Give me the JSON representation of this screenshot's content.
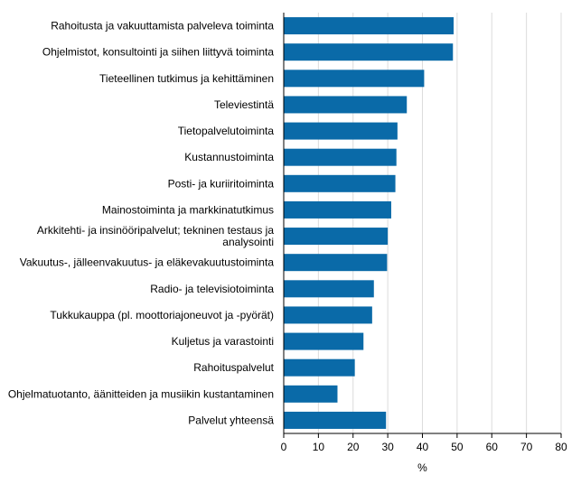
{
  "chart_data": {
    "type": "bar",
    "orientation": "horizontal",
    "categories": [
      [
        "Rahoitusta ja vakuuttamista palveleva toiminta"
      ],
      [
        "Ohjelmistot, konsultointi ja siihen liittyvä toiminta"
      ],
      [
        "Tieteellinen tutkimus ja kehittäminen"
      ],
      [
        "Televiestintä"
      ],
      [
        "Tietopalvelutoiminta"
      ],
      [
        "Kustannustoiminta"
      ],
      [
        "Posti- ja kuriiritoiminta"
      ],
      [
        "Mainostoiminta ja markkinatutkimus"
      ],
      [
        "Arkkitehti- ja insinööripalvelut; tekninen testaus ja",
        "analysointi"
      ],
      [
        "Vakuutus-, jälleenvakuutus- ja eläkevakuutustoiminta"
      ],
      [
        "Radio- ja televisiotoiminta"
      ],
      [
        "Tukkukauppa (pl. moottoriajoneuvot ja -pyörät)"
      ],
      [
        "Kuljetus ja varastointi"
      ],
      [
        "Rahoituspalvelut"
      ],
      [
        "Ohjelmatuotanto, äänitteiden ja musiikin kustantaminen"
      ],
      [
        "Palvelut yhteensä"
      ]
    ],
    "values": [
      49,
      48.8,
      40.5,
      35.5,
      32.8,
      32.5,
      32.2,
      31,
      30,
      29.8,
      26,
      25.5,
      23,
      20.5,
      15.5,
      29.5
    ],
    "xlabel": "%",
    "xlim": [
      0,
      80
    ],
    "xticks": [
      "0",
      "10",
      "20",
      "30",
      "40",
      "50",
      "60",
      "70",
      "80"
    ],
    "grid": true,
    "bar_color": "#0a6aa8",
    "grid_color": "#dcdcdc"
  }
}
